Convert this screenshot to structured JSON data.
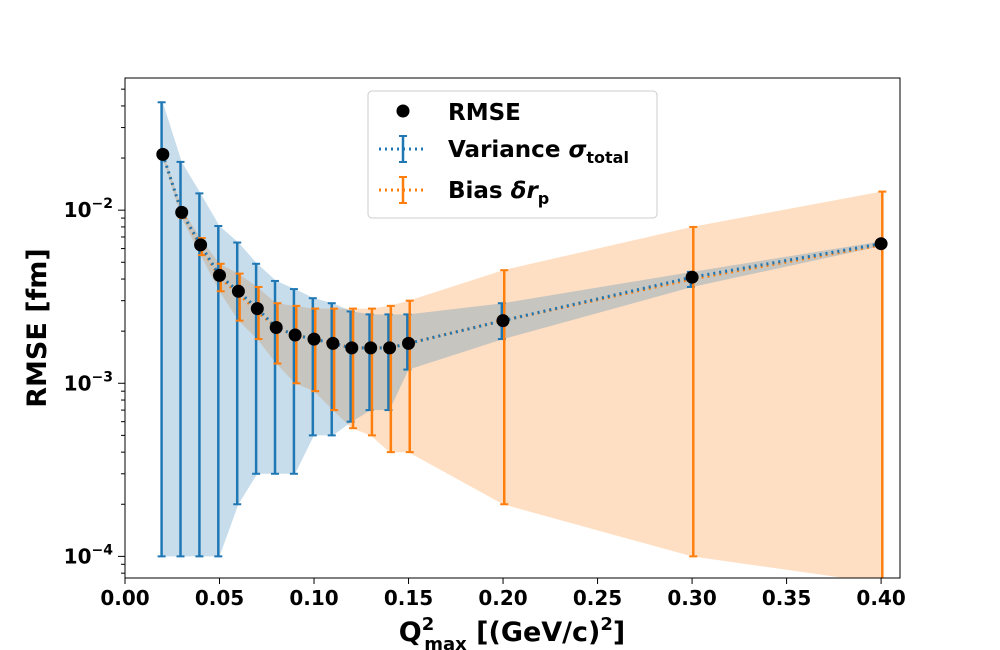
{
  "chart_data": {
    "type": "scatter",
    "title": "",
    "xlabel": {
      "base": "Q",
      "sup": "2",
      "sub": "max",
      "rest": " [(GeV/c)",
      "rest_sup": "2",
      "close": "]"
    },
    "ylabel": "RMSE [fm]",
    "xlim": [
      0.0,
      0.41
    ],
    "ylim": [
      7.5e-05,
      0.058
    ],
    "yscale": "log",
    "x_ticks": [
      "0.00",
      "0.05",
      "0.10",
      "0.15",
      "0.20",
      "0.25",
      "0.30",
      "0.35",
      "0.40"
    ],
    "x_tick_values": [
      0.0,
      0.05,
      0.1,
      0.15,
      0.2,
      0.25,
      0.3,
      0.35,
      0.4
    ],
    "y_ticks": [
      {
        "value": 0.0001,
        "mantissa": "10",
        "exponent": "−4"
      },
      {
        "value": 0.001,
        "mantissa": "10",
        "exponent": "−3"
      },
      {
        "value": 0.01,
        "mantissa": "10",
        "exponent": "−2"
      }
    ],
    "grid": false,
    "legend_position": "top-center",
    "x": [
      0.02,
      0.03,
      0.04,
      0.05,
      0.06,
      0.07,
      0.08,
      0.09,
      0.1,
      0.11,
      0.12,
      0.13,
      0.14,
      0.15,
      0.2,
      0.3,
      0.4
    ],
    "series": [
      {
        "name": "RMSE",
        "color": "#000000",
        "values": [
          0.021,
          0.0097,
          0.0063,
          0.0042,
          0.0034,
          0.0027,
          0.0021,
          0.0019,
          0.0018,
          0.0017,
          0.0016,
          0.0016,
          0.0016,
          0.0017,
          0.0023,
          0.0041,
          0.0064
        ]
      },
      {
        "name_parts": [
          "Variance ",
          "σ",
          "total"
        ],
        "color": "#1f77b4",
        "values": [
          0.021,
          0.0097,
          0.0063,
          0.0042,
          0.0034,
          0.0027,
          0.0021,
          0.0019,
          0.0018,
          0.0017,
          0.0016,
          0.0016,
          0.0016,
          0.0017,
          0.0023,
          0.0041,
          0.0064
        ],
        "lower": [
          0.0001,
          0.0001,
          0.0001,
          0.0001,
          0.0002,
          0.0003,
          0.0003,
          0.0003,
          0.0005,
          0.0005,
          0.0006,
          0.0007,
          0.0007,
          0.0012,
          0.0018,
          0.0036,
          0.0062
        ],
        "upper": [
          0.042,
          0.019,
          0.0125,
          0.0081,
          0.0065,
          0.0049,
          0.0039,
          0.0035,
          0.0031,
          0.0029,
          0.0026,
          0.0025,
          0.0025,
          0.0025,
          0.0029,
          0.0044,
          0.0066
        ]
      },
      {
        "name_parts": [
          "Bias ",
          "δr",
          "p"
        ],
        "color": "#ff7f0e",
        "values": [
          0.021,
          0.0096,
          0.0062,
          0.0041,
          0.0033,
          0.0026,
          0.0021,
          0.0019,
          0.0018,
          0.0017,
          0.0016,
          0.0016,
          0.0016,
          0.0017,
          0.0023,
          0.004,
          0.0063
        ],
        "lower": [
          0.02,
          0.009,
          0.0055,
          0.0034,
          0.0023,
          0.0018,
          0.0013,
          0.001,
          0.0009,
          0.0007,
          0.00055,
          0.0005,
          0.0004,
          0.0004,
          0.0002,
          0.0001,
          7e-05
        ],
        "upper": [
          0.022,
          0.0102,
          0.0069,
          0.0049,
          0.0043,
          0.0036,
          0.0029,
          0.0028,
          0.0027,
          0.0027,
          0.0027,
          0.0027,
          0.0028,
          0.003,
          0.0045,
          0.008,
          0.0128
        ]
      }
    ]
  }
}
